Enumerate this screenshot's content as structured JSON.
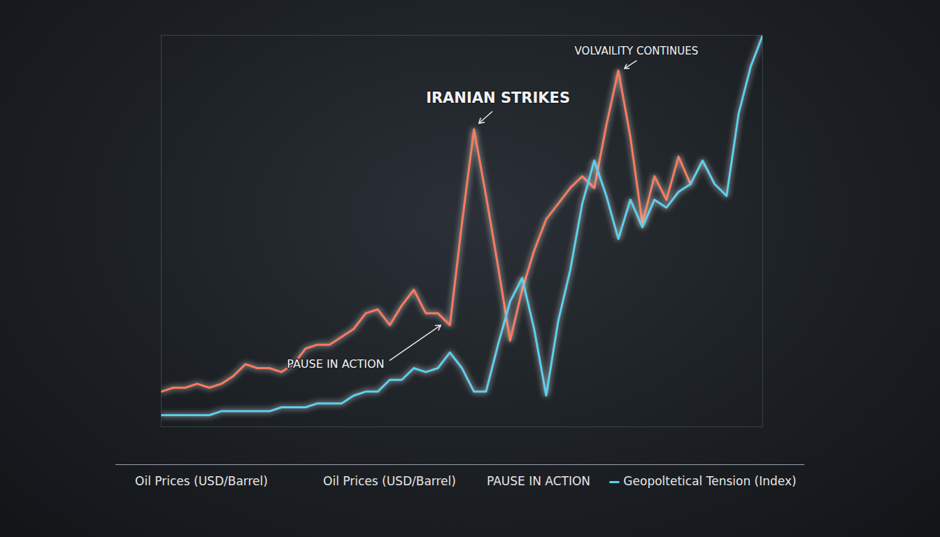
{
  "chart_data": {
    "type": "line",
    "x": [
      0,
      2,
      4,
      6,
      8,
      10,
      12,
      14,
      16,
      18,
      20,
      22,
      24,
      26,
      28,
      30,
      32,
      34,
      36,
      38,
      40,
      42,
      44,
      46,
      48,
      50,
      52,
      54,
      56,
      58,
      60,
      62,
      64,
      66,
      68,
      70,
      72,
      74,
      76,
      78,
      80,
      82,
      84,
      86,
      88,
      90,
      92,
      94,
      96,
      98,
      100
    ],
    "xlim": [
      0,
      100
    ],
    "ylim": [
      0,
      100
    ],
    "tick_labels": false,
    "grid": false,
    "legend": "bottom",
    "series": [
      {
        "name": "Oil Prices (USD/Barrel)",
        "color": "#ff7a5c",
        "values": [
          9,
          10,
          10,
          11,
          10,
          11,
          13,
          16,
          15,
          15,
          14,
          16,
          20,
          21,
          21,
          23,
          25,
          29,
          30,
          26,
          31,
          35,
          29,
          29,
          26,
          52,
          76,
          59,
          41,
          22,
          35,
          45,
          53,
          57,
          61,
          64,
          61,
          77,
          91,
          74,
          52,
          64,
          58,
          69,
          62,
          null,
          null,
          null,
          null,
          null,
          null
        ]
      },
      {
        "name": "Geopoltetical Tension (Index)",
        "color": "#5ad1f0",
        "values": [
          3,
          3,
          3,
          3,
          3,
          4,
          4,
          4,
          4,
          4,
          5,
          5,
          5,
          6,
          6,
          6,
          8,
          9,
          9,
          12,
          12,
          15,
          14,
          15,
          19,
          15,
          9,
          9,
          21,
          32,
          38,
          25,
          8,
          27,
          40,
          57,
          68,
          59,
          48,
          58,
          51,
          58,
          56,
          60,
          62,
          68,
          62,
          59,
          80,
          92,
          100
        ]
      }
    ],
    "annotations": [
      {
        "text": "IRANIAN STRIKES",
        "x": 52,
        "y": 76
      },
      {
        "text": "VOLVAILITY CONTINUES",
        "x": 76,
        "y": 91
      },
      {
        "text": "PAUSE IN ACTION",
        "x": 47,
        "y": 27
      }
    ],
    "legend_labels": [
      "Oil Prices (USD/Barrel)",
      "Oil Prices (USD/Barrel)",
      "PAUSE IN ACTION",
      "Geopoltetical Tension (Index)"
    ]
  }
}
